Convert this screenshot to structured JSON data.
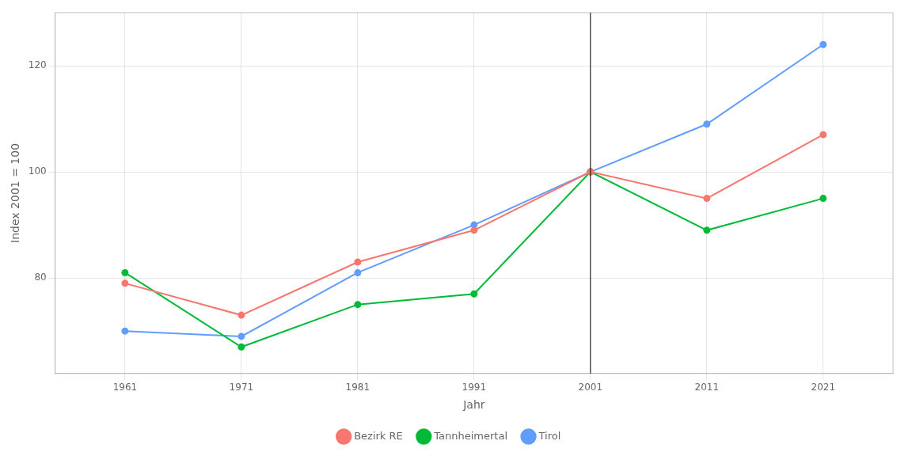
{
  "chart_data": {
    "type": "line",
    "x": [
      1961,
      1971,
      1981,
      1991,
      2001,
      2011,
      2021
    ],
    "series": [
      {
        "name": "Bezirk RE",
        "color": "#F8766D",
        "values": [
          79,
          73,
          83,
          89,
          100,
          95,
          107
        ]
      },
      {
        "name": "Tannheimertal",
        "color": "#00BA38",
        "values": [
          81,
          67,
          75,
          77,
          100,
          89,
          95
        ]
      },
      {
        "name": "Tirol",
        "color": "#619CFF",
        "values": [
          70,
          69,
          81,
          90,
          100,
          109,
          124
        ]
      }
    ],
    "xlabel": "Jahr",
    "ylabel": "Index 2001 = 100",
    "xlim": [
      1955,
      2027
    ],
    "xticks": [
      1961,
      1971,
      1981,
      1991,
      2001,
      2011,
      2021
    ],
    "ylim": [
      62,
      130
    ],
    "yticks": [
      80,
      100,
      120
    ],
    "vlines": [
      {
        "x": 2001,
        "color": "black"
      }
    ],
    "marker": "circle",
    "grid": true,
    "legend": "bottom"
  }
}
